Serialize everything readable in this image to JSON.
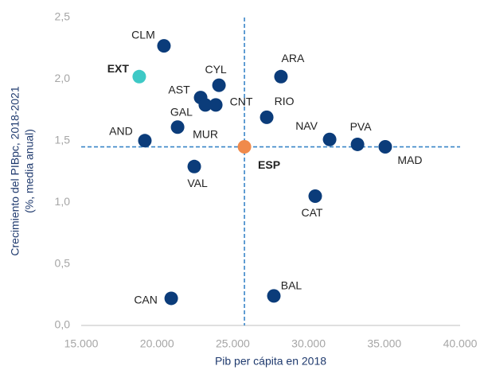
{
  "chart_data": {
    "type": "scatter",
    "x_label": "Pib per cápita en 2018",
    "y_label": [
      "Crecimiento del PIBpc, 2018-2021",
      "(%, media anual)"
    ],
    "labels": [
      "CLM",
      "EXT",
      "CYL",
      "ARA",
      "AST",
      "GAL",
      "CNT",
      "MUR",
      "RIO",
      "AND",
      "ESP",
      "NAV",
      "PVA",
      "MAD",
      "VAL",
      "CAT",
      "CAN",
      "BAL"
    ],
    "x": [
      20460,
      18830,
      24090,
      28180,
      22880,
      23190,
      23880,
      21360,
      27240,
      19200,
      25770,
      31390,
      33230,
      35060,
      22460,
      30440,
      20940,
      27710
    ],
    "y": [
      2.27,
      2.02,
      1.95,
      2.02,
      1.85,
      1.79,
      1.79,
      1.61,
      1.69,
      1.5,
      1.45,
      1.51,
      1.47,
      1.45,
      1.29,
      1.05,
      0.22,
      0.24
    ],
    "colors": [
      "#0b3c7a",
      "#3ec9c6",
      "#0b3c7a",
      "#0b3c7a",
      "#0b3c7a",
      "#0b3c7a",
      "#0b3c7a",
      "#0b3c7a",
      "#0b3c7a",
      "#0b3c7a",
      "#f08a4b",
      "#0b3c7a",
      "#0b3c7a",
      "#0b3c7a",
      "#0b3c7a",
      "#0b3c7a",
      "#0b3c7a",
      "#0b3c7a"
    ],
    "xlim": [
      15000,
      40000
    ],
    "xticks": [
      {
        "value": 15000,
        "label": "15.000"
      },
      {
        "value": 20000,
        "label": "20.000"
      },
      {
        "value": 25000,
        "label": "25.000"
      },
      {
        "value": 30000,
        "label": "30.000"
      },
      {
        "value": 35000,
        "label": "35.000"
      },
      {
        "value": 40000,
        "label": "40.000"
      }
    ],
    "ylim": [
      0,
      2.5
    ],
    "yticks": [
      {
        "value": 0,
        "label": "0,0"
      },
      {
        "value": 0.5,
        "label": "0,5"
      },
      {
        "value": 1,
        "label": "1,0"
      },
      {
        "value": 1.5,
        "label": "1,5"
      },
      {
        "value": 2,
        "label": "2,0"
      },
      {
        "value": 2.5,
        "label": "2,5"
      }
    ]
  }
}
